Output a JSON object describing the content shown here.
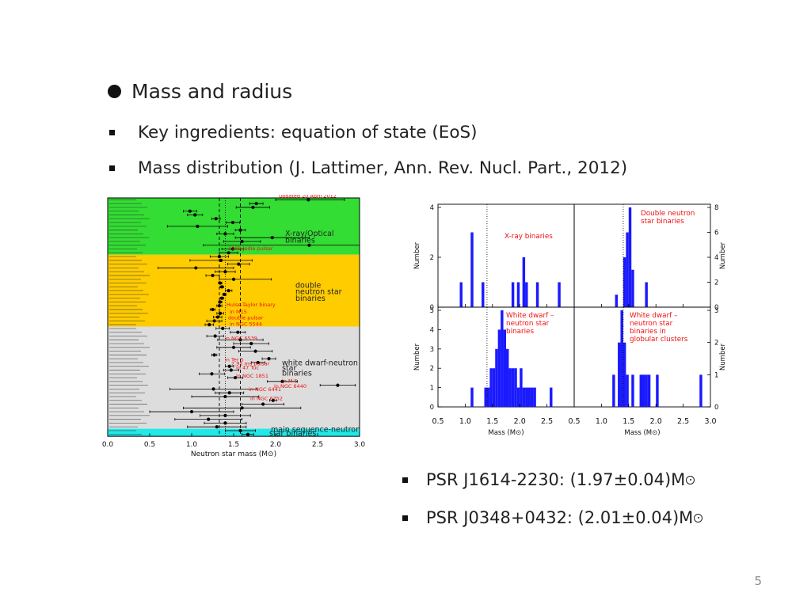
{
  "slide": {
    "heading": "Mass and radius",
    "bullet1": "Key ingredients: equation of state (EoS)",
    "bullet2": "Mass distribution (J. Lattimer, Ann. Rev. Nucl. Part., 2012)",
    "psr1": "PSR J1614-2230: (1.97±0.04)M",
    "psr2": "PSR J0348+0432: (2.01±0.04)M",
    "page_number": "5"
  },
  "colors": {
    "xray_band": "#33dd33",
    "dns_band": "#ffcc00",
    "wd_band": "#dddddd",
    "ms_band": "#22e8e8",
    "hist_bar": "#1a1aff",
    "annot_red": "#ee1111"
  },
  "chart_data": [
    {
      "type": "scatter",
      "xlabel": "Neutron star mass (M⊙)",
      "xlim": [
        0.0,
        3.0
      ],
      "xticks": [
        "0.0",
        "0.5",
        "1.0",
        "1.5",
        "2.0",
        "2.5",
        "3.0"
      ],
      "top_note": "updated 20 April 2012",
      "group_labels": [
        {
          "text": "X-ray/Optical binaries",
          "group": "xray"
        },
        {
          "text": "double neutron star binaries",
          "group": "dns"
        },
        {
          "text": "white dwarf-neutron star binaries",
          "group": "wd"
        },
        {
          "text": "main sequence-neutron star binaries",
          "group": "ms"
        }
      ],
      "annotations": [
        "1909 Jodie pulsar",
        "Hulse-Taylor binary",
        "in M15",
        "double pulsar",
        "in NGC 5544",
        "in NGC 6539",
        "in Ter 5",
        "2.95 ms pulsar",
        "in 47 Tuc",
        "in NGC 1851",
        "in M 5",
        "in NGC 6440",
        "in NGC 6441",
        "in NGC 6752"
      ],
      "series": [
        {
          "group": "xray",
          "points": [
            {
              "y": 2.39,
              "lo": 2.0,
              "hi": 2.82
            },
            {
              "y": 1.77,
              "lo": 1.69,
              "hi": 1.85
            },
            {
              "y": 1.73,
              "lo": 1.53,
              "hi": 1.93
            },
            {
              "y": 0.98,
              "lo": 0.9,
              "hi": 1.06
            },
            {
              "y": 1.04,
              "lo": 0.95,
              "hi": 1.13
            },
            {
              "y": 1.29,
              "lo": 1.24,
              "hi": 1.34
            },
            {
              "y": 1.49,
              "lo": 1.41,
              "hi": 1.57
            },
            {
              "y": 1.07,
              "lo": 0.71,
              "hi": 1.43
            },
            {
              "y": 1.58,
              "lo": 1.52,
              "hi": 1.64
            },
            {
              "y": 1.4,
              "lo": 1.3,
              "hi": 1.5
            },
            {
              "y": 1.96,
              "lo": 1.52,
              "hi": 2.4
            },
            {
              "y": 1.6,
              "lo": 1.38,
              "hi": 1.82
            },
            {
              "y": 2.4,
              "lo": 1.14,
              "hi": 3.0
            },
            {
              "y": 1.49,
              "lo": 1.36,
              "hi": 1.62
            },
            {
              "y": 1.44,
              "lo": 1.33,
              "hi": 1.55
            }
          ]
        },
        {
          "group": "dns",
          "points": [
            {
              "y": 1.33,
              "lo": 1.22,
              "hi": 1.44
            },
            {
              "y": 1.35,
              "lo": 0.98,
              "hi": 1.72
            },
            {
              "y": 1.56,
              "lo": 1.43,
              "hi": 1.69
            },
            {
              "y": 1.05,
              "lo": 0.6,
              "hi": 1.5
            },
            {
              "y": 1.4,
              "lo": 1.28,
              "hi": 1.52
            },
            {
              "y": 1.25,
              "lo": 1.17,
              "hi": 1.33
            },
            {
              "y": 1.5,
              "lo": 1.33,
              "hi": 1.95
            },
            {
              "y": 1.34,
              "lo": 1.32,
              "hi": 1.36
            },
            {
              "y": 1.36,
              "lo": 1.34,
              "hi": 1.38
            },
            {
              "y": 1.44,
              "lo": 1.4,
              "hi": 1.48
            },
            {
              "y": 1.39,
              "lo": 1.37,
              "hi": 1.41
            },
            {
              "y": 1.36,
              "lo": 1.34,
              "hi": 1.38
            },
            {
              "y": 1.34,
              "lo": 1.32,
              "hi": 1.36
            },
            {
              "y": 1.33,
              "lo": 1.3,
              "hi": 1.36
            },
            {
              "y": 1.25,
              "lo": 1.22,
              "hi": 1.28
            },
            {
              "y": 1.34,
              "lo": 1.3,
              "hi": 1.38
            },
            {
              "y": 1.31,
              "lo": 1.26,
              "hi": 1.36
            },
            {
              "y": 1.27,
              "lo": 1.18,
              "hi": 1.36
            },
            {
              "y": 1.21,
              "lo": 1.16,
              "hi": 1.26
            }
          ]
        },
        {
          "group": "wd",
          "points": [
            {
              "y": 1.37,
              "lo": 1.29,
              "hi": 1.45
            },
            {
              "y": 1.55,
              "lo": 1.46,
              "hi": 1.64
            },
            {
              "y": 1.28,
              "lo": 1.18,
              "hi": 1.38
            },
            {
              "y": 1.58,
              "lo": 1.31,
              "hi": 1.85
            },
            {
              "y": 1.71,
              "lo": 1.5,
              "hi": 1.92
            },
            {
              "y": 1.5,
              "lo": 1.3,
              "hi": 1.7
            },
            {
              "y": 1.76,
              "lo": 1.56,
              "hi": 1.96
            },
            {
              "y": 1.27,
              "lo": 1.24,
              "hi": 1.3
            },
            {
              "y": 1.92,
              "lo": 1.84,
              "hi": 2.0
            },
            {
              "y": 1.79,
              "lo": 1.71,
              "hi": 1.87
            },
            {
              "y": 1.45,
              "lo": 1.4,
              "hi": 1.5
            },
            {
              "y": 1.47,
              "lo": 1.38,
              "hi": 1.56
            },
            {
              "y": 1.24,
              "lo": 1.09,
              "hi": 1.39
            },
            {
              "y": 1.52,
              "lo": 1.43,
              "hi": 1.61
            },
            {
              "y": 2.08,
              "lo": 1.9,
              "hi": 2.26
            },
            {
              "y": 2.74,
              "lo": 2.53,
              "hi": 2.95
            },
            {
              "y": 1.26,
              "lo": 0.74,
              "hi": 1.78
            },
            {
              "y": 1.45,
              "lo": 1.28,
              "hi": 1.62
            },
            {
              "y": 1.4,
              "lo": 1.0,
              "hi": 1.8
            },
            {
              "y": 1.97,
              "lo": 1.93,
              "hi": 2.01
            },
            {
              "y": 1.85,
              "lo": 1.6,
              "hi": 2.1
            },
            {
              "y": 1.6,
              "lo": 0.9,
              "hi": 2.3
            },
            {
              "y": 1.0,
              "lo": 0.5,
              "hi": 1.5
            },
            {
              "y": 1.4,
              "lo": 1.1,
              "hi": 1.7
            },
            {
              "y": 1.2,
              "lo": 0.8,
              "hi": 1.6
            },
            {
              "y": 1.4,
              "lo": 1.15,
              "hi": 1.65
            },
            {
              "y": 1.3,
              "lo": 0.95,
              "hi": 1.65
            }
          ]
        },
        {
          "group": "ms",
          "points": [
            {
              "y": 1.58,
              "lo": 1.4,
              "hi": 1.76
            },
            {
              "y": 1.67,
              "lo": 1.6,
              "hi": 1.74
            }
          ]
        }
      ]
    },
    {
      "type": "bar",
      "panels": [
        {
          "label": "X-ray binaries",
          "axis_side": "left",
          "ylabel": "Number",
          "yticks": [
            "0",
            "2",
            "4"
          ],
          "ymax": 4,
          "counts": [
            0,
            0,
            0,
            0,
            0,
            0,
            0,
            0,
            1,
            0,
            0,
            0,
            3,
            0,
            0,
            0,
            1,
            0,
            0,
            0,
            0,
            0,
            0,
            0,
            0,
            0,
            0,
            1,
            0,
            1,
            0,
            2,
            1,
            0,
            0,
            0,
            1,
            0,
            0,
            0,
            0,
            0,
            0,
            0,
            1,
            0,
            0,
            0,
            0,
            0
          ]
        },
        {
          "label": "Double neutron star binaries",
          "axis_side": "right",
          "ylabel": "Number",
          "yticks": [
            "0",
            "2",
            "4",
            "6",
            "8"
          ],
          "ymax": 8,
          "counts": [
            0,
            0,
            0,
            0,
            0,
            0,
            0,
            0,
            0,
            0,
            0,
            0,
            0,
            0,
            0,
            1,
            0,
            0,
            4,
            6,
            8,
            3,
            0,
            0,
            0,
            0,
            2,
            0,
            0,
            0,
            0,
            0,
            0,
            0,
            0,
            0,
            0,
            0,
            0,
            0,
            0,
            0,
            0,
            0,
            0,
            0,
            0,
            0,
            0,
            0
          ]
        },
        {
          "label": "White dwarf - neutron star binaries",
          "axis_side": "left",
          "ylabel": "Number",
          "yticks": [
            "0",
            "1",
            "2",
            "3",
            "4",
            "5"
          ],
          "ymax": 5,
          "counts": [
            0,
            0,
            0,
            0,
            0,
            0,
            0,
            0,
            0,
            0,
            0,
            0,
            1,
            0,
            0,
            0,
            0,
            1,
            1,
            2,
            2,
            3,
            4,
            5,
            4,
            3,
            2,
            2,
            2,
            1,
            2,
            1,
            1,
            1,
            1,
            1,
            0,
            0,
            0,
            0,
            0,
            1,
            0,
            0,
            0,
            0,
            0,
            0,
            0,
            0
          ]
        },
        {
          "label": "White dwarf - neutron star binaries in globular clusters",
          "axis_side": "right",
          "ylabel": "Number",
          "yticks": [
            "0",
            "1",
            "2",
            "3"
          ],
          "ymax": 3,
          "counts": [
            0,
            0,
            0,
            0,
            0,
            0,
            0,
            0,
            0,
            0,
            0,
            0,
            0,
            0,
            1,
            0,
            2,
            3,
            2,
            1,
            0,
            1,
            0,
            0,
            1,
            1,
            1,
            1,
            0,
            0,
            1,
            0,
            0,
            0,
            0,
            0,
            0,
            0,
            0,
            0,
            0,
            0,
            0,
            0,
            0,
            0,
            1,
            0,
            0,
            0
          ]
        }
      ],
      "bin_start": 0.5,
      "bin_width": 0.05,
      "xlim": [
        0.5,
        3.0
      ],
      "xticks": [
        "0.5",
        "1.0",
        "1.5",
        "2.0",
        "2.5",
        "0.5",
        "1.0",
        "1.5",
        "2.0",
        "2.5",
        "3.0"
      ],
      "xlabel_left": "Mass (M⊙)",
      "xlabel_right": "Mass (M⊙)"
    }
  ]
}
